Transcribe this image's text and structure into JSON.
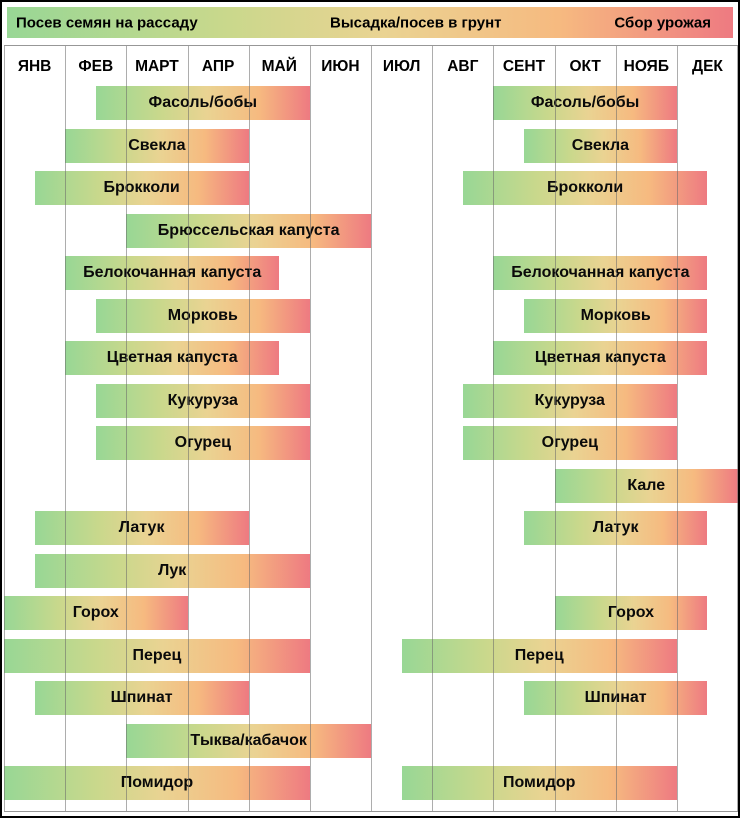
{
  "colors": {
    "frame": "#000000",
    "gridline": "#979797",
    "background": "#ffffff",
    "text": "#000000"
  },
  "chart_data": {
    "type": "gantt",
    "title": "",
    "unit": "months, 0 = start of January, 12 = end of December",
    "legend_position": "top",
    "legend": [
      {
        "label": "Посев семян на рассаду",
        "phase_color": "#98d795"
      },
      {
        "label": "Высадка/посев в грунт",
        "phase_color": "#f6ba80"
      },
      {
        "label": "Сбор урожая",
        "phase_color": "#ee7a81"
      }
    ],
    "gradient": [
      {
        "color": "#98d795",
        "pos": 0
      },
      {
        "color": "#c9d88c",
        "pos": 30
      },
      {
        "color": "#ead392",
        "pos": 52
      },
      {
        "color": "#f6ba80",
        "pos": 76
      },
      {
        "color": "#ee7a81",
        "pos": 100
      }
    ],
    "categories": [
      "ЯНВ",
      "ФЕВ",
      "МАРТ",
      "АПР",
      "МАЙ",
      "ИЮН",
      "ИЮЛ",
      "АВГ",
      "СЕНТ",
      "ОКТ",
      "НОЯБ",
      "ДЕК"
    ],
    "rows": [
      {
        "crop": "Фасоль/бобы",
        "bars": [
          {
            "start": 1.5,
            "end": 5
          },
          {
            "start": 8,
            "end": 11
          }
        ]
      },
      {
        "crop": "Свекла",
        "bars": [
          {
            "start": 1,
            "end": 4
          },
          {
            "start": 8.5,
            "end": 11
          }
        ]
      },
      {
        "crop": "Брокколи",
        "bars": [
          {
            "start": 0.5,
            "end": 4
          },
          {
            "start": 7.5,
            "end": 11.5
          }
        ]
      },
      {
        "crop": "Брюссельская капуста",
        "bars": [
          {
            "start": 2,
            "end": 6
          }
        ]
      },
      {
        "crop": "Белокочанная капуста",
        "bars": [
          {
            "start": 1,
            "end": 4.5
          },
          {
            "start": 8,
            "end": 11.5
          }
        ]
      },
      {
        "crop": "Морковь",
        "bars": [
          {
            "start": 1.5,
            "end": 5
          },
          {
            "start": 8.5,
            "end": 11.5
          }
        ]
      },
      {
        "crop": "Цветная капуста",
        "bars": [
          {
            "start": 1,
            "end": 4.5
          },
          {
            "start": 8,
            "end": 11.5
          }
        ]
      },
      {
        "crop": "Кукуруза",
        "bars": [
          {
            "start": 1.5,
            "end": 5
          },
          {
            "start": 7.5,
            "end": 11
          }
        ]
      },
      {
        "crop": "Огурец",
        "bars": [
          {
            "start": 1.5,
            "end": 5
          },
          {
            "start": 7.5,
            "end": 11
          }
        ]
      },
      {
        "crop": "Кале",
        "bars": [
          {
            "start": 9,
            "end": 12
          }
        ]
      },
      {
        "crop": "Латук",
        "bars": [
          {
            "start": 0.5,
            "end": 4
          },
          {
            "start": 8.5,
            "end": 11.5
          }
        ]
      },
      {
        "crop": "Лук",
        "bars": [
          {
            "start": 0.5,
            "end": 5
          }
        ]
      },
      {
        "crop": "Горох",
        "bars": [
          {
            "start": 0,
            "end": 3
          },
          {
            "start": 9,
            "end": 11.5
          }
        ]
      },
      {
        "crop": "Перец",
        "bars": [
          {
            "start": 0,
            "end": 5
          },
          {
            "start": 6.5,
            "end": 11
          }
        ]
      },
      {
        "crop": "Шпинат",
        "bars": [
          {
            "start": 0.5,
            "end": 4
          },
          {
            "start": 8.5,
            "end": 11.5
          }
        ]
      },
      {
        "crop": "Тыква/кабачок",
        "bars": [
          {
            "start": 2,
            "end": 6
          }
        ]
      },
      {
        "crop": "Помидор",
        "bars": [
          {
            "start": 0,
            "end": 5
          },
          {
            "start": 6.5,
            "end": 11
          }
        ]
      }
    ]
  }
}
